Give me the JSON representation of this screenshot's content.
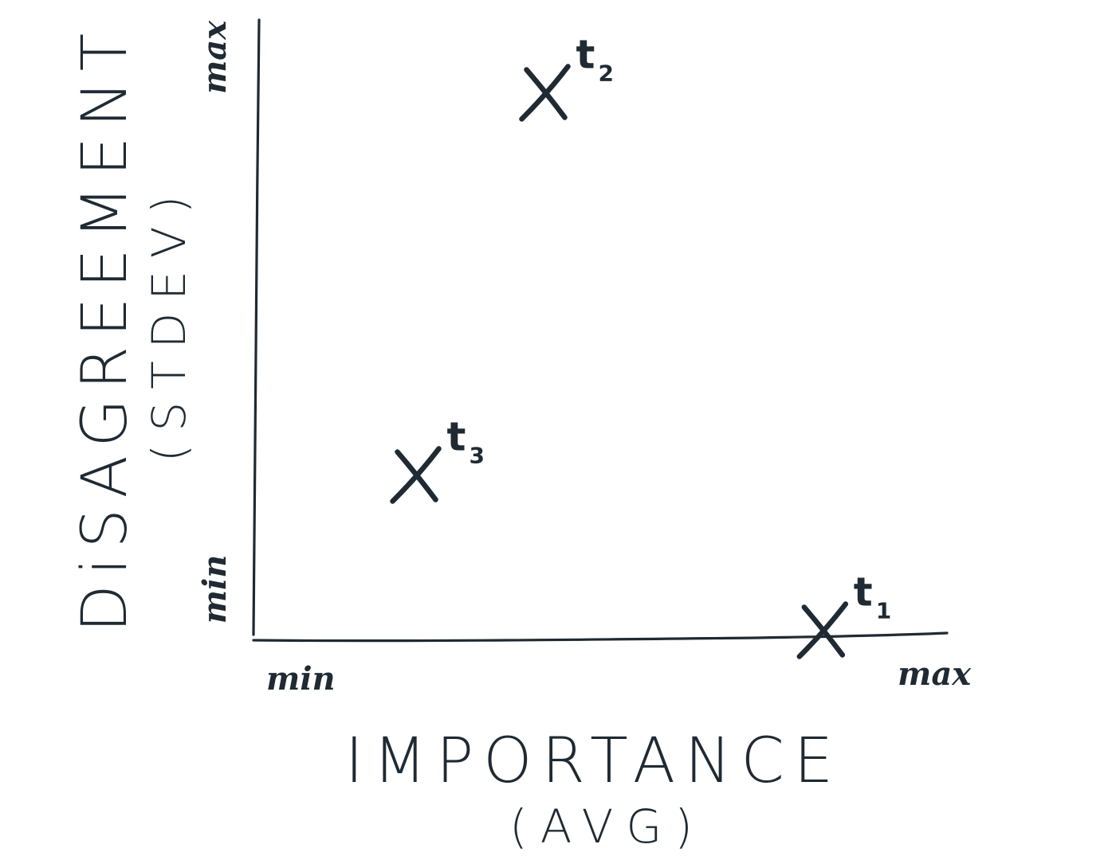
{
  "chart_data": {
    "type": "scatter",
    "title": "",
    "xlabel": "IMPORTANCE",
    "xlabel_sub": "(AVG)",
    "ylabel": "DiSAGREEMENT",
    "ylabel_sub": "(STDEV)",
    "x_tick_labels": {
      "min": "min",
      "max": "max"
    },
    "y_tick_labels": {
      "min": "min",
      "max": "max"
    },
    "xlim": [
      0,
      1
    ],
    "ylim": [
      0,
      1
    ],
    "grid": false,
    "legend": "none",
    "points": [
      {
        "label": "t",
        "subscript": "2",
        "x": 0.45,
        "y": 0.91
      },
      {
        "label": "t",
        "subscript": "3",
        "x": 0.25,
        "y": 0.27
      },
      {
        "label": "t",
        "subscript": "1",
        "x": 0.88,
        "y": 0.01
      }
    ]
  },
  "colors": {
    "ink": "#1f2a33",
    "background": "#ffffff"
  }
}
